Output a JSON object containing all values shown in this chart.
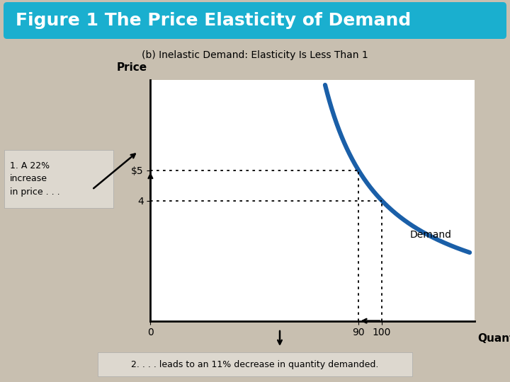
{
  "title": "Figure 1 The Price Elasticity of Demand",
  "subtitle": "(b) Inelastic Demand: Elasticity Is Less Than 1",
  "title_bg_color_top": "#4dc8df",
  "title_bg_color": "#1aafcf",
  "title_text_color": "#ffffff",
  "bg_color": "#c8bfb0",
  "plot_bg_color": "#ffffff",
  "demand_color": "#1a5fa8",
  "price_label": "Price",
  "quantity_label": "Quantity",
  "demand_label": "Demand",
  "y_ticks": [
    4,
    5
  ],
  "y_tick_labels": [
    "4",
    "$5"
  ],
  "x_ticks": [
    0,
    90,
    100
  ],
  "x_tick_labels": [
    "0",
    "90",
    "100"
  ],
  "note1": "1. A 22%\nincrease\nin price . . .",
  "note2": "2. . . . leads to an 11% decrease in quantity demanded.",
  "xlim": [
    0,
    140
  ],
  "ylim": [
    0,
    8
  ],
  "curve_k": 200,
  "curve_c": 50,
  "curve_xmin": 75.5,
  "curve_xmax": 138
}
